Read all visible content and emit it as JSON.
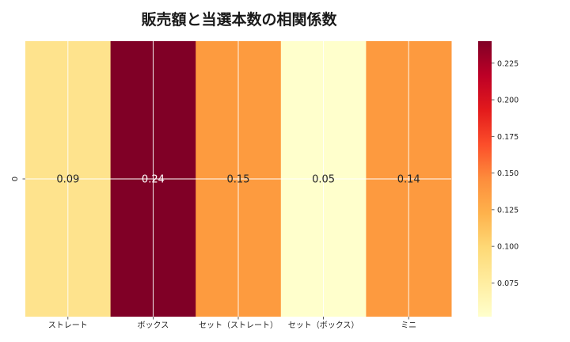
{
  "chart_data": {
    "type": "heatmap",
    "title": "販売額と当選本数の相関係数",
    "x_categories": [
      "ストレート",
      "ボックス",
      "セット（ストレート）",
      "セット（ボックス）",
      "ミニ"
    ],
    "y_categories": [
      "0"
    ],
    "values": [
      [
        0.09,
        0.24,
        0.15,
        0.05,
        0.14
      ]
    ],
    "value_labels": [
      "0.09",
      "0.24",
      "0.15",
      "0.05",
      "0.14"
    ],
    "colorbar": {
      "min": 0.052,
      "max": 0.24,
      "ticks": [
        0.075,
        0.1,
        0.125,
        0.15,
        0.175,
        0.2,
        0.225
      ],
      "tick_labels": [
        "0.075",
        "0.100",
        "0.125",
        "0.150",
        "0.175",
        "0.200",
        "0.225"
      ],
      "colormap": "YlOrRd"
    },
    "grid": true,
    "cell_colors": [
      "#fee38d",
      "#800026",
      "#fd9b3f",
      "#ffffcc",
      "#fd9a3f"
    ],
    "colormap_stops": [
      "#ffffcc",
      "#ffeda0",
      "#fed976",
      "#feb24c",
      "#fd8d3c",
      "#fc4e2a",
      "#e31a1c",
      "#bd0026",
      "#800026"
    ]
  }
}
